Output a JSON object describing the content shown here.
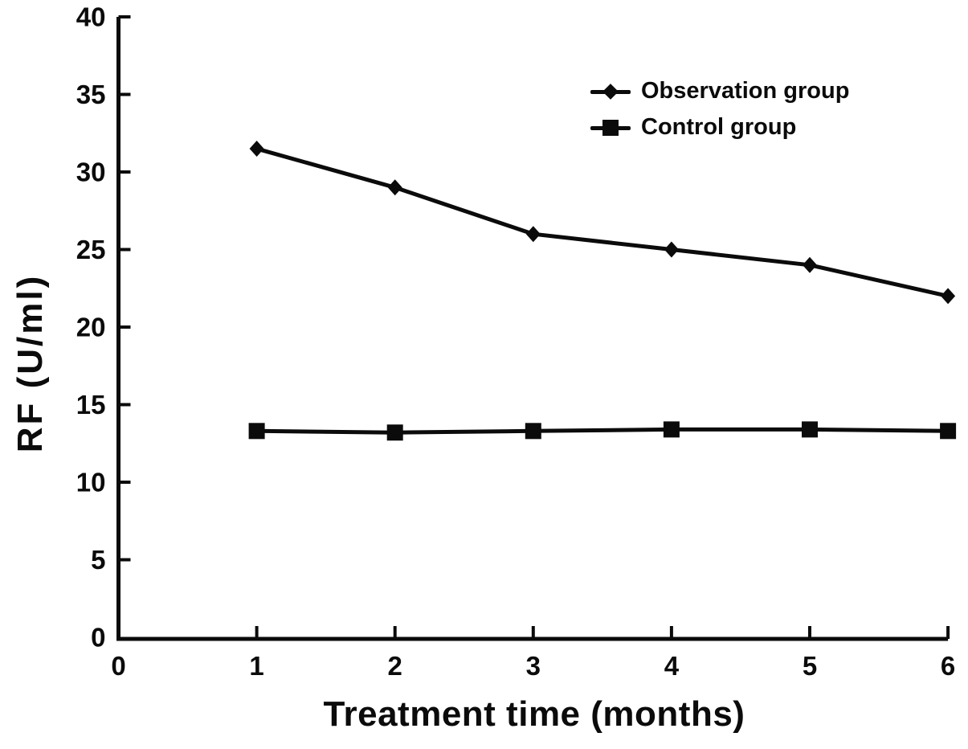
{
  "figure": {
    "background": "#ffffff",
    "ink_color": "#0b0b0b"
  },
  "chart_data": {
    "type": "line",
    "title": "",
    "xlabel": "Treatment time (months)",
    "ylabel": "RF (U/ml)",
    "x": [
      1,
      2,
      3,
      4,
      5,
      6
    ],
    "series": [
      {
        "name": "Observation group",
        "marker": "diamond",
        "values": [
          31.5,
          29,
          26,
          25,
          24,
          22
        ]
      },
      {
        "name": "Control group",
        "marker": "square",
        "values": [
          13.3,
          13.2,
          13.3,
          13.4,
          13.4,
          13.3
        ]
      }
    ],
    "xlim": [
      0,
      6
    ],
    "ylim": [
      0,
      40
    ],
    "xticks": [
      0,
      1,
      2,
      3,
      4,
      5,
      6
    ],
    "yticks": [
      0,
      5,
      10,
      15,
      20,
      25,
      30,
      35,
      40
    ],
    "grid": false,
    "line_color": "#0b0b0b",
    "legend_position": "upper-right-inside"
  }
}
